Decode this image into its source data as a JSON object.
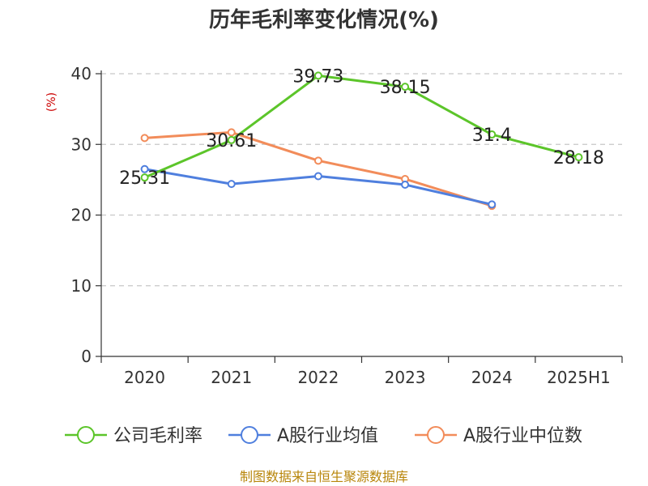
{
  "chart_data": {
    "type": "line",
    "title": "历年毛利率变化情况(%)",
    "ylabel": "(%)",
    "categories": [
      "2020",
      "2021",
      "2022",
      "2023",
      "2024",
      "2025H1"
    ],
    "ylim": [
      0,
      40
    ],
    "yticks": [
      "0",
      "10",
      "20",
      "30",
      "40"
    ],
    "grid": true,
    "legend_position": "bottom",
    "series": [
      {
        "name": "公司毛利率",
        "color": "#5cc52a",
        "values": [
          25.31,
          30.61,
          39.73,
          38.15,
          31.4,
          28.18
        ],
        "labels": [
          "25.31",
          "30.61",
          "39.73",
          "38.15",
          "31.4",
          "28.18"
        ]
      },
      {
        "name": "A股行业均值",
        "color": "#4f7fde",
        "values": [
          26.5,
          24.4,
          25.5,
          24.3,
          21.5,
          null
        ]
      },
      {
        "name": "A股行业中位数",
        "color": "#f28c5a",
        "values": [
          30.9,
          31.7,
          27.7,
          25.1,
          21.3,
          null
        ]
      }
    ]
  },
  "source_note": "制图数据来自恒生聚源数据库"
}
